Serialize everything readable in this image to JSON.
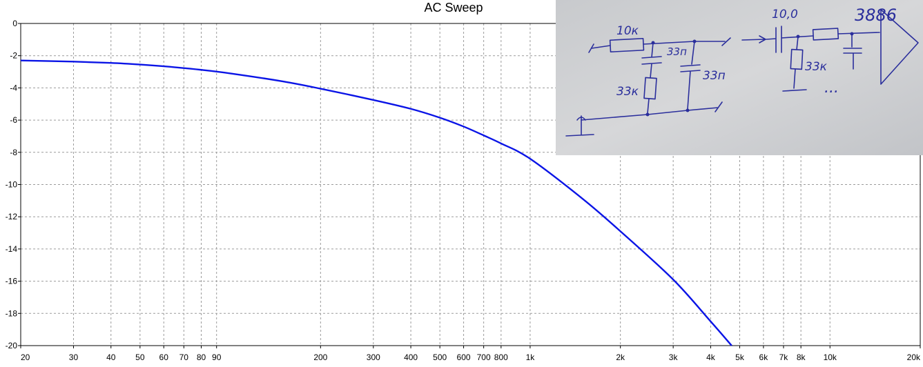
{
  "chart_data": {
    "type": "line",
    "title": "AC Sweep",
    "xscale": "log",
    "xlim": [
      20,
      20000
    ],
    "ylim": [
      -20,
      0
    ],
    "grid": true,
    "x_ticks": [
      {
        "value": 20,
        "label": "20"
      },
      {
        "value": 30,
        "label": "30"
      },
      {
        "value": 40,
        "label": "40"
      },
      {
        "value": 50,
        "label": "50"
      },
      {
        "value": 60,
        "label": "60"
      },
      {
        "value": 70,
        "label": "70"
      },
      {
        "value": 80,
        "label": "80"
      },
      {
        "value": 90,
        "label": "90"
      },
      {
        "value": 200,
        "label": "200"
      },
      {
        "value": 300,
        "label": "300"
      },
      {
        "value": 400,
        "label": "400"
      },
      {
        "value": 500,
        "label": "500"
      },
      {
        "value": 600,
        "label": "600"
      },
      {
        "value": 700,
        "label": "700"
      },
      {
        "value": 800,
        "label": "800"
      },
      {
        "value": 1000,
        "label": "1k"
      },
      {
        "value": 2000,
        "label": "2k"
      },
      {
        "value": 3000,
        "label": "3k"
      },
      {
        "value": 4000,
        "label": "4k"
      },
      {
        "value": 5000,
        "label": "5k"
      },
      {
        "value": 6000,
        "label": "6k"
      },
      {
        "value": 7000,
        "label": "7k"
      },
      {
        "value": 8000,
        "label": "8k"
      },
      {
        "value": 10000,
        "label": "10k"
      },
      {
        "value": 20000,
        "label": "20k"
      }
    ],
    "y_ticks": [
      {
        "value": 0,
        "label": "0"
      },
      {
        "value": -2,
        "label": "-2"
      },
      {
        "value": -4,
        "label": "-4"
      },
      {
        "value": -6,
        "label": "-6"
      },
      {
        "value": -8,
        "label": "-8"
      },
      {
        "value": -10,
        "label": "-10"
      },
      {
        "value": -12,
        "label": "-12"
      },
      {
        "value": -14,
        "label": "-14"
      },
      {
        "value": -16,
        "label": "-16"
      },
      {
        "value": -18,
        "label": "-18"
      },
      {
        "value": -20,
        "label": "-20"
      }
    ],
    "series": [
      {
        "color": "#0a14e6",
        "x": [
          20,
          30,
          40,
          50,
          60,
          80,
          100,
          150,
          200,
          300,
          400,
          500,
          600,
          700,
          800,
          1000,
          1500,
          2000,
          3000,
          4000,
          4700
        ],
        "y": [
          -2.3,
          -2.37,
          -2.45,
          -2.55,
          -2.66,
          -2.88,
          -3.1,
          -3.6,
          -4.05,
          -4.75,
          -5.3,
          -5.85,
          -6.4,
          -6.95,
          -7.45,
          -8.4,
          -10.9,
          -12.9,
          -15.9,
          -18.5,
          -20.0
        ]
      }
    ]
  },
  "sketch": {
    "labels": {
      "r1": "10к",
      "c1": "33п",
      "c2": "33п",
      "r2": "33к",
      "cap_in": "10,0",
      "r3": "33к",
      "ellipsis": "...",
      "chip": "3886"
    }
  }
}
